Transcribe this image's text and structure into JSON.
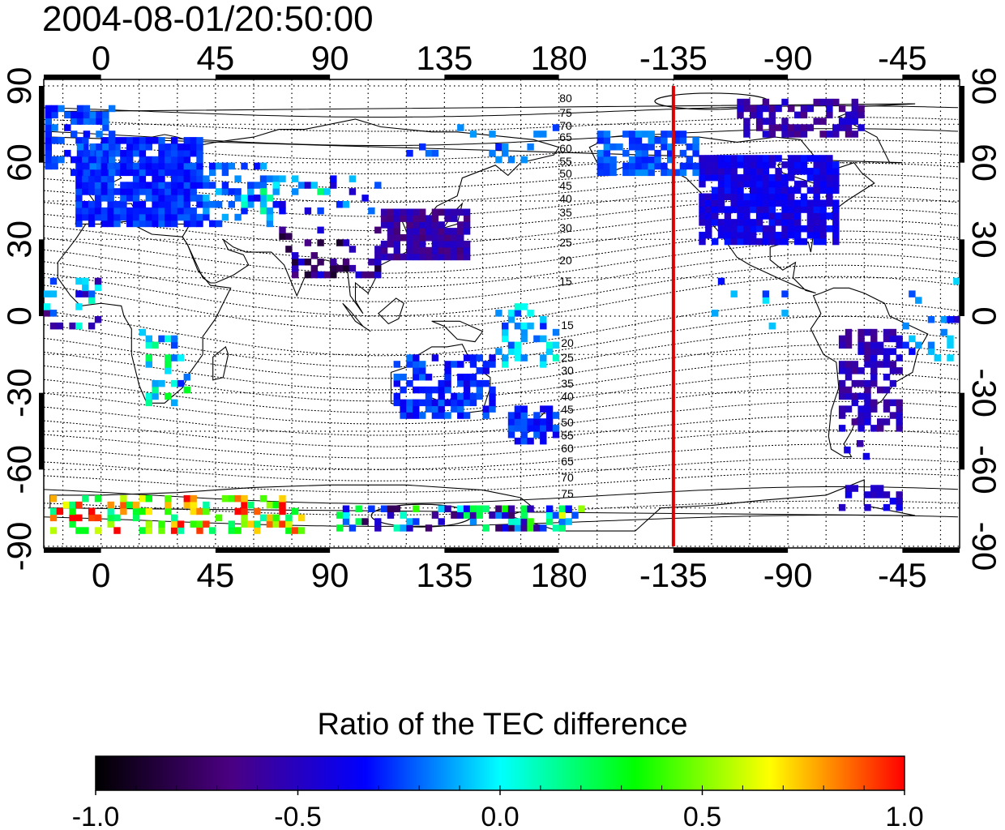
{
  "title": "2004-08-01/20:50:00",
  "map": {
    "top_lon_ticks": [
      "0",
      "45",
      "90",
      "135",
      "180",
      "-135",
      "-90",
      "-45"
    ],
    "bottom_lon_ticks": [
      "0",
      "45",
      "90",
      "135",
      "180",
      "-135",
      "-90",
      "-45"
    ],
    "left_lat_ticks": [
      "90",
      "60",
      "30",
      "0",
      "-30",
      "-60",
      "-90"
    ],
    "right_lat_ticks": [
      "90",
      "60",
      "30",
      "0",
      "-30",
      "-60",
      "-90"
    ],
    "contour_labels_north": [
      "80",
      "75",
      "70",
      "65",
      "60",
      "55",
      "50",
      "45",
      "40",
      "35",
      "30",
      "25",
      "20",
      "15"
    ],
    "contour_labels_south": [
      "15",
      "20",
      "25",
      "30",
      "35",
      "40",
      "45",
      "50",
      "55",
      "60",
      "65",
      "70",
      "75"
    ],
    "terminator_color": "#dd0000",
    "terminator_lon": -135
  },
  "colorbar": {
    "title": "Ratio of the TEC difference",
    "tick_labels": [
      "-1.0",
      "-0.5",
      "0.0",
      "0.5",
      "1.0"
    ],
    "range": [
      -1.0,
      1.0
    ],
    "colors": [
      "#000000",
      "#4b0082",
      "#0000ff",
      "#00ffff",
      "#00ff00",
      "#ffff00",
      "#ff0000"
    ]
  }
}
